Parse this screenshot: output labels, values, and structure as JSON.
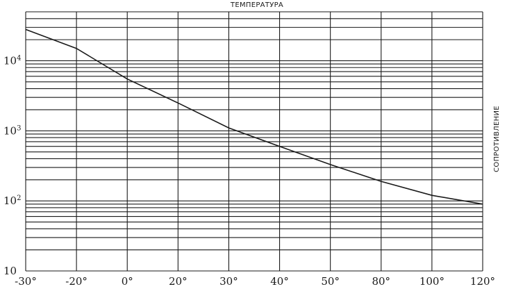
{
  "chart_data": {
    "type": "line",
    "title": "ТЕМПЕРАТУРА",
    "ylabel": "СОПРОТИВЛЕНИЕ",
    "xlabel": "",
    "y_scale": "log",
    "ylim": [
      10,
      50000
    ],
    "grid": true,
    "x_tick_labels": [
      "-30°",
      "-20°",
      "0°",
      "20°",
      "30°",
      "40°",
      "50°",
      "80°",
      "100°",
      "120°"
    ],
    "y_tick_labels": [
      {
        "value": 10,
        "base": "10",
        "exp": ""
      },
      {
        "value": 100,
        "base": "10",
        "exp": "2"
      },
      {
        "value": 1000,
        "base": "10",
        "exp": "3"
      },
      {
        "value": 10000,
        "base": "10",
        "exp": "4"
      }
    ],
    "series": [
      {
        "x": [
          "-30°",
          "-20°",
          "0°",
          "20°",
          "30°",
          "40°",
          "50°",
          "80°",
          "100°",
          "120°"
        ],
        "values": [
          28000,
          15000,
          5500,
          2500,
          1100,
          600,
          330,
          190,
          120,
          90
        ]
      }
    ]
  }
}
